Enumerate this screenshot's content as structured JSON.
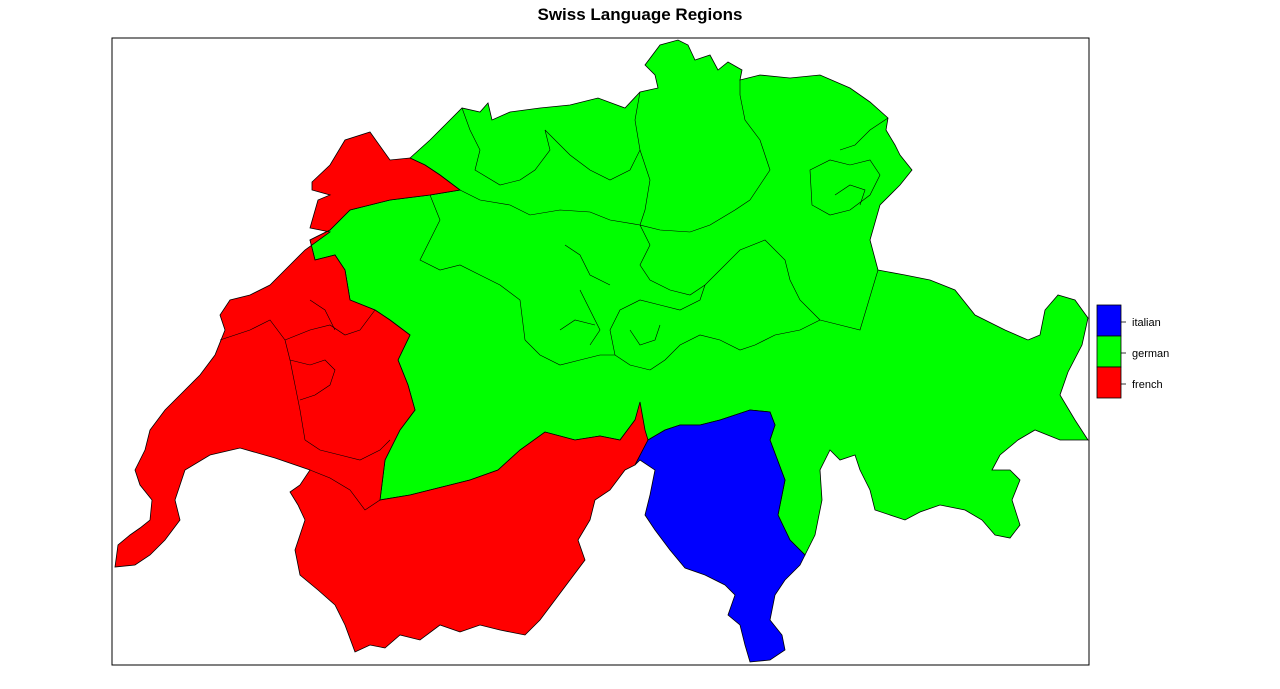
{
  "title": "Swiss Language Regions",
  "legend": {
    "placement": "right",
    "entries": [
      {
        "label": "italian",
        "color": "#0000ff"
      },
      {
        "label": "german",
        "color": "#00ff00"
      },
      {
        "label": "french",
        "color": "#ff0000"
      }
    ]
  },
  "regions": {
    "french": {
      "color": "#ff0000"
    },
    "german": {
      "color": "#00ff00"
    },
    "italian": {
      "color": "#0000ff"
    }
  },
  "border_color": "#000000"
}
